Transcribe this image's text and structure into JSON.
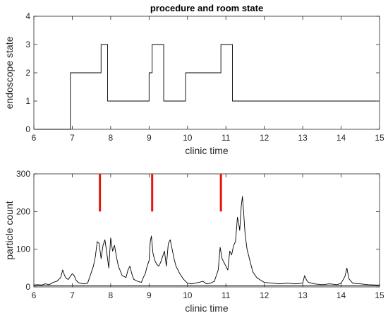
{
  "chart_data": [
    {
      "type": "line",
      "title": "procedure and room state",
      "xlabel": "clinic time",
      "ylabel": "endoscope state",
      "xlim": [
        6,
        15
      ],
      "ylim": [
        0,
        4
      ],
      "x_ticks": [
        6,
        7,
        8,
        9,
        10,
        11,
        12,
        13,
        14,
        15
      ],
      "y_ticks": [
        0,
        1,
        2,
        3,
        4
      ],
      "grid": false,
      "step": true,
      "series": [
        {
          "color": "#000000",
          "x": [
            6.0,
            6.95,
            6.95,
            7.75,
            7.75,
            7.92,
            7.92,
            9.0,
            9.0,
            9.08,
            9.08,
            9.38,
            9.38,
            9.95,
            9.95,
            10.87,
            10.87,
            11.17,
            11.17,
            15.0
          ],
          "y": [
            0,
            0,
            2,
            2,
            3,
            3,
            1,
            1,
            2,
            2,
            3,
            3,
            1,
            1,
            2,
            2,
            3,
            3,
            1,
            1
          ]
        }
      ]
    },
    {
      "type": "line",
      "title": "",
      "xlabel": "clinic time",
      "ylabel": "particle count",
      "xlim": [
        6,
        15
      ],
      "ylim": [
        0,
        300
      ],
      "x_ticks": [
        6,
        7,
        8,
        9,
        10,
        11,
        12,
        13,
        14,
        15
      ],
      "y_ticks": [
        0,
        100,
        200,
        300
      ],
      "grid": false,
      "series": [
        {
          "color": "#000000",
          "x": [
            6.0,
            6.1,
            6.2,
            6.3,
            6.4,
            6.5,
            6.6,
            6.7,
            6.75,
            6.8,
            6.85,
            6.9,
            6.95,
            7.0,
            7.05,
            7.1,
            7.15,
            7.2,
            7.3,
            7.4,
            7.5,
            7.55,
            7.6,
            7.65,
            7.7,
            7.75,
            7.8,
            7.85,
            7.9,
            7.95,
            8.0,
            8.05,
            8.1,
            8.15,
            8.2,
            8.3,
            8.4,
            8.45,
            8.5,
            8.55,
            8.6,
            8.7,
            8.8,
            8.85,
            8.9,
            8.95,
            9.0,
            9.03,
            9.06,
            9.1,
            9.15,
            9.2,
            9.25,
            9.3,
            9.35,
            9.4,
            9.45,
            9.5,
            9.55,
            9.6,
            9.65,
            9.7,
            9.8,
            9.9,
            10.0,
            10.1,
            10.2,
            10.3,
            10.4,
            10.5,
            10.6,
            10.7,
            10.8,
            10.85,
            10.9,
            10.95,
            11.0,
            11.05,
            11.1,
            11.15,
            11.2,
            11.25,
            11.3,
            11.33,
            11.36,
            11.4,
            11.43,
            11.46,
            11.5,
            11.55,
            11.6,
            11.65,
            11.7,
            11.8,
            11.9,
            12.0,
            12.2,
            12.4,
            12.6,
            12.8,
            13.0,
            13.05,
            13.1,
            13.15,
            13.3,
            13.5,
            13.7,
            13.9,
            14.0,
            14.1,
            14.15,
            14.2,
            14.3,
            14.5,
            14.7,
            14.9,
            15.0
          ],
          "y": [
            5,
            6,
            5,
            8,
            6,
            12,
            15,
            25,
            45,
            30,
            22,
            20,
            28,
            35,
            30,
            18,
            12,
            10,
            8,
            10,
            40,
            55,
            80,
            120,
            115,
            75,
            110,
            125,
            90,
            50,
            130,
            95,
            110,
            80,
            55,
            30,
            25,
            45,
            55,
            35,
            20,
            15,
            12,
            25,
            35,
            55,
            70,
            120,
            135,
            90,
            70,
            60,
            55,
            65,
            80,
            95,
            55,
            115,
            125,
            100,
            75,
            55,
            35,
            20,
            10,
            8,
            10,
            12,
            15,
            8,
            10,
            15,
            45,
            105,
            75,
            65,
            55,
            45,
            95,
            85,
            110,
            120,
            185,
            170,
            150,
            215,
            240,
            200,
            140,
            100,
            80,
            60,
            40,
            25,
            18,
            12,
            10,
            8,
            10,
            8,
            10,
            30,
            18,
            12,
            8,
            6,
            8,
            6,
            10,
            28,
            50,
            22,
            10,
            8,
            6,
            5,
            5
          ]
        },
        {
          "color": "#000000",
          "x": [
            6.0,
            15.0
          ],
          "y": [
            3,
            3
          ]
        }
      ],
      "annotations": [
        {
          "type": "vline",
          "x": 7.72,
          "y_from": 200,
          "y_to": 300,
          "color": "#e8150e"
        },
        {
          "type": "vline",
          "x": 9.08,
          "y_from": 200,
          "y_to": 300,
          "color": "#e8150e"
        },
        {
          "type": "vline",
          "x": 10.87,
          "y_from": 200,
          "y_to": 300,
          "color": "#e8150e"
        }
      ]
    }
  ]
}
